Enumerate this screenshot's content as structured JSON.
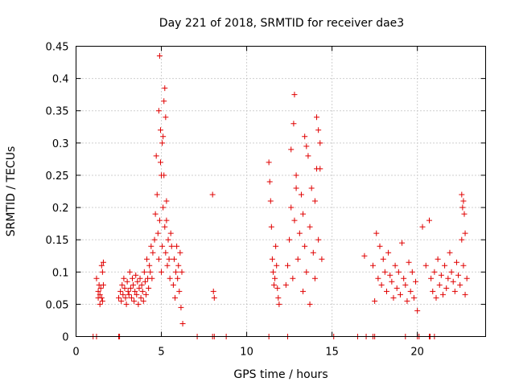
{
  "chart_data": {
    "type": "scatter",
    "title": "Day 221 of 2018, SRMTID for receiver dae3",
    "xlabel": "GPS time / hours",
    "ylabel": "SRMTID / TECUs",
    "xlim": [
      0,
      24
    ],
    "ylim": [
      0,
      0.45
    ],
    "xticks": [
      0,
      5,
      10,
      15,
      20
    ],
    "xtick_labels": [
      "0",
      "5",
      "10",
      "15",
      "20"
    ],
    "yticks": [
      0,
      0.05,
      0.1,
      0.15,
      0.2,
      0.25,
      0.3,
      0.35,
      0.4,
      0.45
    ],
    "ytick_labels": [
      "0",
      "0.05",
      "0.1",
      "0.15",
      "0.2",
      "0.25",
      "0.3",
      "0.35",
      "0.4",
      "0.45"
    ],
    "grid": true,
    "marker": "+",
    "series": [
      {
        "name": "SRMTID",
        "color": "#e00000",
        "x": [
          1.0,
          1.2,
          1.3,
          1.3,
          1.35,
          1.4,
          1.4,
          1.45,
          1.5,
          1.5,
          1.55,
          1.55,
          1.6,
          1.6,
          2.5,
          2.6,
          2.65,
          2.7,
          2.75,
          2.8,
          2.85,
          2.9,
          2.95,
          3.0,
          3.05,
          3.1,
          3.15,
          3.2,
          3.25,
          3.3,
          3.35,
          3.4,
          3.45,
          3.5,
          3.55,
          3.6,
          3.65,
          3.7,
          3.75,
          3.8,
          3.85,
          3.9,
          3.95,
          4.0,
          4.05,
          4.1,
          4.15,
          4.2,
          4.25,
          4.3,
          4.35,
          4.4,
          4.45,
          4.5,
          4.6,
          4.65,
          4.7,
          4.75,
          4.8,
          4.85,
          4.9,
          4.95,
          5.0,
          5.05,
          5.1,
          5.15,
          5.2,
          5.25,
          5.3,
          5.35,
          5.4,
          5.45,
          5.5,
          5.55,
          5.6,
          5.7,
          5.75,
          5.8,
          5.85,
          5.9,
          5.95,
          6.0,
          6.05,
          6.1,
          6.15,
          6.2,
          6.25,
          4.9,
          4.85,
          5.2,
          5.15,
          5.1,
          4.95,
          5.05,
          5.25,
          5.0,
          5.3,
          8.0,
          8.05,
          8.1,
          11.3,
          11.35,
          11.4,
          11.45,
          11.5,
          11.55,
          11.6,
          11.65,
          11.7,
          11.75,
          11.8,
          11.85,
          11.9,
          12.3,
          12.4,
          12.5,
          12.6,
          12.7,
          12.8,
          12.9,
          13.0,
          13.1,
          13.2,
          13.3,
          13.4,
          13.5,
          13.6,
          13.7,
          13.8,
          13.9,
          14.0,
          14.1,
          14.2,
          14.3,
          14.4,
          12.6,
          12.75,
          12.8,
          13.4,
          13.5,
          14.1,
          14.2,
          14.3,
          12.9,
          13.3,
          13.7,
          14.0,
          16.9,
          17.4,
          17.5,
          17.6,
          17.7,
          17.8,
          17.9,
          18.0,
          18.1,
          18.2,
          18.3,
          18.4,
          18.5,
          18.6,
          18.7,
          18.8,
          18.9,
          19.0,
          19.1,
          19.2,
          19.3,
          19.4,
          19.5,
          19.6,
          19.7,
          19.8,
          19.9,
          20.0,
          20.3,
          20.5,
          20.7,
          20.8,
          20.9,
          21.0,
          21.1,
          21.2,
          21.3,
          21.4,
          21.5,
          21.6,
          21.7,
          21.8,
          21.9,
          22.0,
          22.1,
          22.2,
          22.3,
          22.4,
          22.5,
          22.6,
          22.7,
          22.8,
          22.9,
          22.6,
          22.7,
          22.8,
          22.75,
          22.65,
          1.2,
          2.5,
          2.55,
          7.1,
          8.0,
          8.1,
          8.8,
          11.3,
          12.4,
          15.1,
          16.5,
          17.0,
          17.4,
          17.5,
          19.3,
          20.0,
          20.1,
          20.7,
          20.75,
          21.0
        ],
        "y": [
          0.0,
          0.09,
          0.07,
          0.06,
          0.08,
          0.05,
          0.065,
          0.075,
          0.06,
          0.11,
          0.055,
          0.1,
          0.08,
          0.115,
          0.06,
          0.07,
          0.055,
          0.08,
          0.065,
          0.09,
          0.075,
          0.06,
          0.05,
          0.085,
          0.07,
          0.065,
          0.1,
          0.075,
          0.06,
          0.09,
          0.08,
          0.055,
          0.07,
          0.095,
          0.065,
          0.085,
          0.05,
          0.075,
          0.09,
          0.06,
          0.08,
          0.07,
          0.055,
          0.1,
          0.085,
          0.065,
          0.12,
          0.09,
          0.075,
          0.11,
          0.1,
          0.14,
          0.09,
          0.13,
          0.15,
          0.19,
          0.28,
          0.22,
          0.16,
          0.12,
          0.18,
          0.27,
          0.1,
          0.14,
          0.2,
          0.25,
          0.17,
          0.13,
          0.21,
          0.11,
          0.15,
          0.12,
          0.09,
          0.16,
          0.14,
          0.08,
          0.12,
          0.06,
          0.1,
          0.14,
          0.09,
          0.11,
          0.07,
          0.13,
          0.045,
          0.1,
          0.02,
          0.435,
          0.35,
          0.385,
          0.365,
          0.31,
          0.32,
          0.3,
          0.34,
          0.25,
          0.18,
          0.22,
          0.07,
          0.06,
          0.27,
          0.24,
          0.21,
          0.17,
          0.12,
          0.1,
          0.08,
          0.09,
          0.14,
          0.11,
          0.075,
          0.06,
          0.05,
          0.08,
          0.11,
          0.15,
          0.2,
          0.09,
          0.18,
          0.25,
          0.12,
          0.16,
          0.22,
          0.19,
          0.14,
          0.1,
          0.28,
          0.17,
          0.23,
          0.13,
          0.21,
          0.26,
          0.15,
          0.3,
          0.12,
          0.29,
          0.33,
          0.375,
          0.31,
          0.295,
          0.34,
          0.32,
          0.26,
          0.23,
          0.07,
          0.05,
          0.09,
          0.125,
          0.11,
          0.055,
          0.16,
          0.09,
          0.14,
          0.08,
          0.12,
          0.1,
          0.07,
          0.13,
          0.095,
          0.085,
          0.06,
          0.11,
          0.075,
          0.1,
          0.065,
          0.145,
          0.09,
          0.08,
          0.055,
          0.115,
          0.07,
          0.1,
          0.06,
          0.085,
          0.04,
          0.17,
          0.11,
          0.18,
          0.09,
          0.07,
          0.1,
          0.06,
          0.12,
          0.08,
          0.095,
          0.065,
          0.11,
          0.075,
          0.09,
          0.13,
          0.1,
          0.085,
          0.07,
          0.115,
          0.095,
          0.08,
          0.15,
          0.11,
          0.065,
          0.09,
          0.22,
          0.21,
          0.16,
          0.19,
          0.2,
          0,
          0,
          0,
          0,
          0,
          0,
          0,
          0,
          0,
          0,
          0,
          0,
          0,
          0,
          0,
          0,
          0,
          0,
          0,
          0
        ]
      }
    ]
  }
}
